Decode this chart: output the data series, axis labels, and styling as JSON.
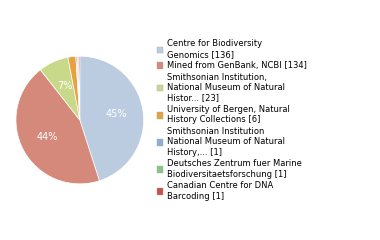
{
  "labels": [
    "Centre for Biodiversity\nGenomics [136]",
    "Mined from GenBank, NCBI [134]",
    "Smithsonian Institution,\nNational Museum of Natural\nHistor... [23]",
    "University of Bergen, Natural\nHistory Collections [6]",
    "Smithsonian Institution\nNational Museum of Natural\nHistory,... [1]",
    "Deutsches Zentrum fuer Marine\nBiodiversitaetsforschung [1]",
    "Canadian Centre for DNA\nBarcoding [1]"
  ],
  "values": [
    136,
    134,
    23,
    6,
    1,
    1,
    1
  ],
  "colors": [
    "#bccce0",
    "#d4897a",
    "#c9d98a",
    "#e8a040",
    "#8ab0d4",
    "#88c488",
    "#cc5040"
  ],
  "pct_labels": [
    "45%",
    "44%",
    "7%",
    "",
    "",
    "",
    ""
  ],
  "startangle": 90,
  "legend_fontsize": 6.0,
  "figsize": [
    3.8,
    2.4
  ],
  "dpi": 100
}
